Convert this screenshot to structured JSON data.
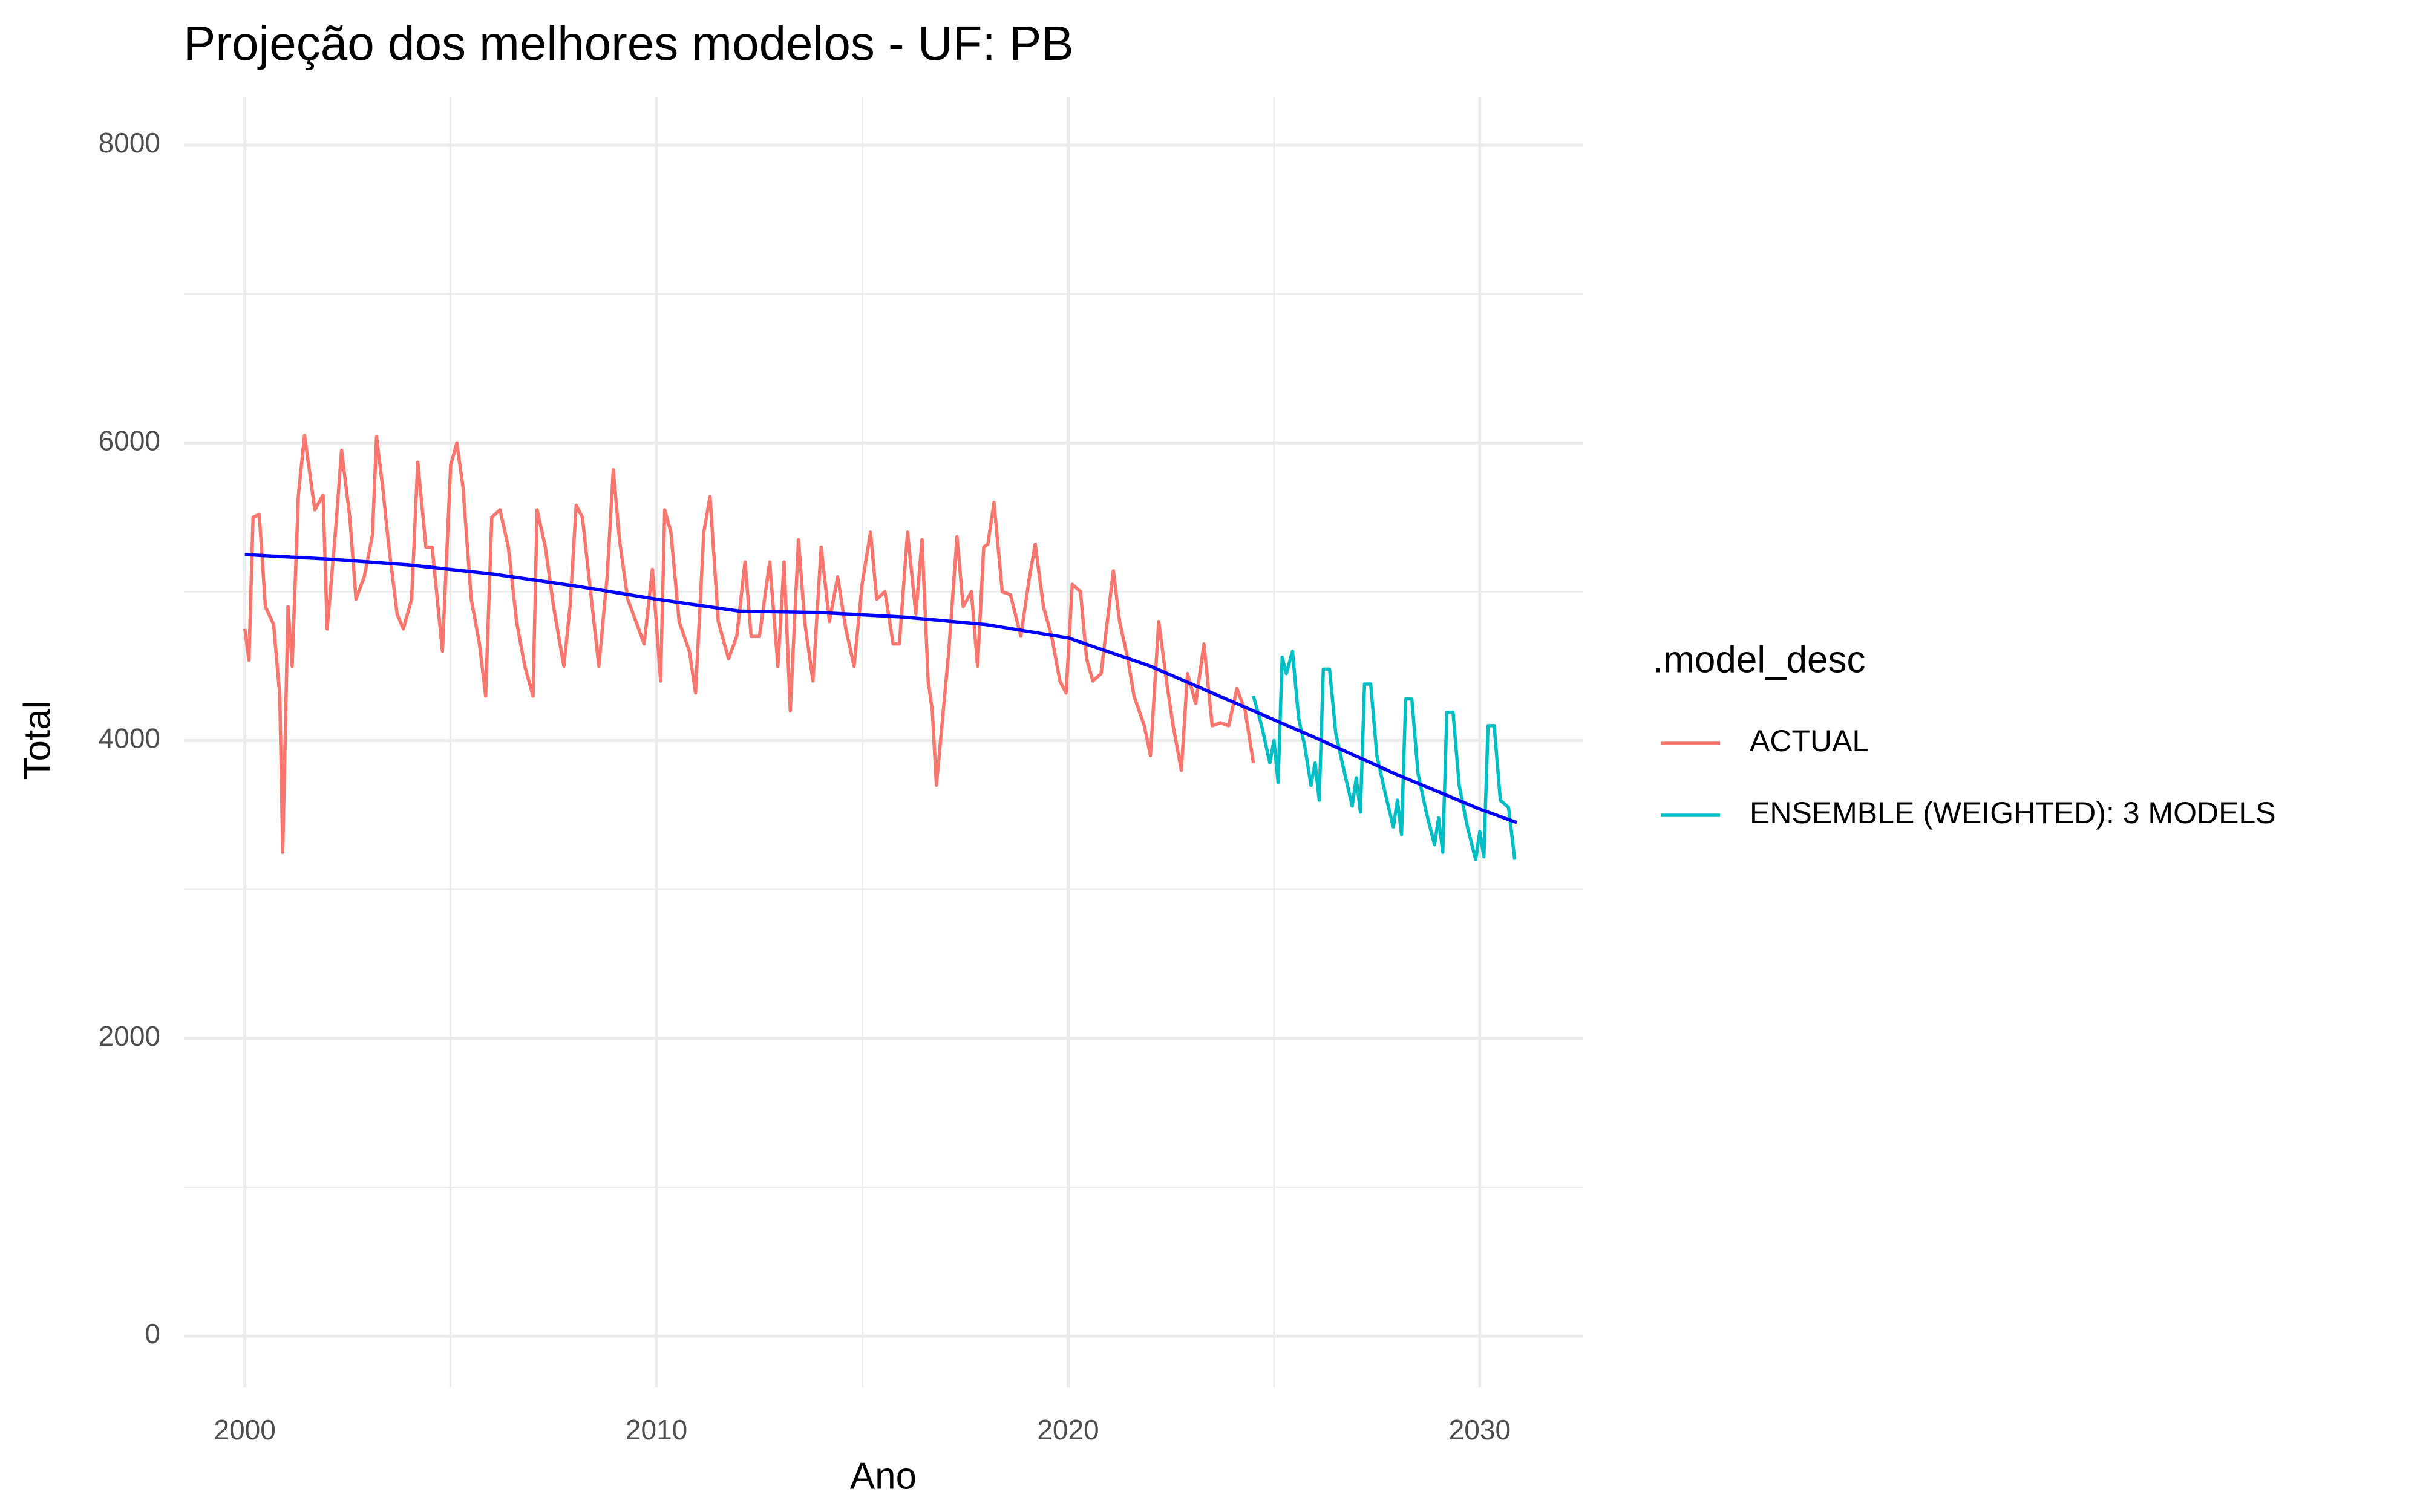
{
  "chart_data": {
    "type": "line",
    "title": "Projeção dos melhores modelos - UF: PB",
    "x_label": "Ano",
    "y_label": "Total",
    "legend_title": ".model_desc",
    "xlim": [
      1998.52,
      2032.5
    ],
    "ylim": [
      -345,
      8325
    ],
    "xticks": [
      2000,
      2010,
      2020,
      2030
    ],
    "xticks_minor": [
      2005,
      2015,
      2025
    ],
    "yticks": [
      0,
      2000,
      4000,
      6000,
      8000
    ],
    "yticks_minor": [
      1000,
      3000,
      5000,
      7000
    ],
    "grid": true,
    "legend": "right",
    "series": [
      {
        "name": "ACTUAL",
        "color": "#F8766D",
        "x": [
          2000.0,
          2000.1,
          2000.2,
          2000.35,
          2000.5,
          2000.7,
          2000.85,
          2000.92,
          2001.05,
          2001.15,
          2001.3,
          2001.45,
          2001.7,
          2001.9,
          2002.0,
          2002.2,
          2002.35,
          2002.55,
          2002.7,
          2002.9,
          2003.1,
          2003.2,
          2003.35,
          2003.5,
          2003.7,
          2003.85,
          2004.05,
          2004.2,
          2004.4,
          2004.55,
          2004.8,
          2005.0,
          2005.15,
          2005.3,
          2005.5,
          2005.7,
          2005.85,
          2006.0,
          2006.2,
          2006.4,
          2006.6,
          2006.8,
          2007.0,
          2007.1,
          2007.3,
          2007.5,
          2007.75,
          2007.9,
          2008.05,
          2008.2,
          2008.4,
          2008.6,
          2008.8,
          2008.95,
          2009.1,
          2009.3,
          2009.5,
          2009.7,
          2009.9,
          2010.1,
          2010.2,
          2010.35,
          2010.55,
          2010.8,
          2010.95,
          2011.15,
          2011.3,
          2011.5,
          2011.75,
          2011.95,
          2012.15,
          2012.3,
          2012.5,
          2012.75,
          2012.95,
          2013.1,
          2013.25,
          2013.45,
          2013.6,
          2013.8,
          2014.0,
          2014.2,
          2014.4,
          2014.6,
          2014.8,
          2015.0,
          2015.2,
          2015.35,
          2015.55,
          2015.75,
          2015.9,
          2016.1,
          2016.3,
          2016.45,
          2016.6,
          2016.7,
          2016.8,
          2016.95,
          2017.1,
          2017.3,
          2017.45,
          2017.65,
          2017.8,
          2017.95,
          2018.05,
          2018.2,
          2018.4,
          2018.6,
          2018.85,
          2019.05,
          2019.2,
          2019.4,
          2019.6,
          2019.8,
          2019.95,
          2020.1,
          2020.3,
          2020.45,
          2020.6,
          2020.8,
          2021.1,
          2021.25,
          2021.45,
          2021.6,
          2021.85,
          2022.0,
          2022.2,
          2022.4,
          2022.55,
          2022.75,
          2022.9,
          2023.1,
          2023.3,
          2023.5,
          2023.7,
          2023.9,
          2024.1,
          2024.3,
          2024.5
        ],
        "values": [
          4750,
          4540,
          5500,
          5520,
          4900,
          4780,
          4300,
          3250,
          4900,
          4500,
          5650,
          6050,
          5550,
          5650,
          4750,
          5400,
          5950,
          5500,
          4950,
          5100,
          5380,
          6040,
          5700,
          5300,
          4850,
          4750,
          4950,
          5870,
          5300,
          5300,
          4600,
          5850,
          6000,
          5700,
          4950,
          4650,
          4300,
          5500,
          5550,
          5300,
          4800,
          4500,
          4300,
          5550,
          5300,
          4900,
          4500,
          4900,
          5580,
          5500,
          5000,
          4500,
          5100,
          5820,
          5350,
          4950,
          4800,
          4650,
          5150,
          4400,
          5550,
          5400,
          4800,
          4600,
          4320,
          5400,
          5640,
          4800,
          4550,
          4700,
          5200,
          4700,
          4700,
          5200,
          4500,
          5200,
          4200,
          5350,
          4800,
          4400,
          5300,
          4800,
          5100,
          4750,
          4500,
          5060,
          5400,
          4950,
          5000,
          4650,
          4650,
          5400,
          4850,
          5350,
          4400,
          4200,
          3700,
          4150,
          4600,
          5370,
          4900,
          5000,
          4500,
          5300,
          5320,
          5600,
          5000,
          4980,
          4700,
          5080,
          5320,
          4900,
          4700,
          4400,
          4320,
          5050,
          5000,
          4550,
          4400,
          4450,
          5140,
          4800,
          4550,
          4300,
          4100,
          3900,
          4800,
          4380,
          4100,
          3800,
          4450,
          4250,
          4650,
          4100,
          4120,
          4100,
          4350,
          4200,
          3850
        ]
      },
      {
        "name": "ENSEMBLE (WEIGHTED): 3 MODELS",
        "color": "#00BFC4",
        "x": [
          2024.5,
          2024.7,
          2024.9,
          2025.0,
          2025.1,
          2025.2,
          2025.3,
          2025.45,
          2025.6,
          2025.75,
          2025.9,
          2026.0,
          2026.1,
          2026.2,
          2026.35,
          2026.5,
          2026.7,
          2026.9,
          2027.0,
          2027.1,
          2027.2,
          2027.35,
          2027.5,
          2027.7,
          2027.9,
          2028.0,
          2028.1,
          2028.2,
          2028.35,
          2028.5,
          2028.7,
          2028.9,
          2029.0,
          2029.1,
          2029.2,
          2029.35,
          2029.5,
          2029.7,
          2029.9,
          2030.0,
          2030.1,
          2030.2,
          2030.35,
          2030.5,
          2030.7,
          2030.85
        ],
        "values": [
          4300,
          4100,
          3850,
          4000,
          3720,
          4560,
          4450,
          4600,
          4150,
          3960,
          3700,
          3850,
          3600,
          4480,
          4480,
          4050,
          3800,
          3560,
          3750,
          3520,
          4380,
          4380,
          3900,
          3650,
          3420,
          3600,
          3370,
          4280,
          4280,
          3780,
          3520,
          3300,
          3480,
          3250,
          4190,
          4190,
          3700,
          3420,
          3200,
          3390,
          3220,
          4100,
          4100,
          3600,
          3550,
          3200
        ]
      }
    ],
    "trend": {
      "color": "#0000FF",
      "x": [
        2000,
        2002,
        2004,
        2006,
        2008,
        2010,
        2012,
        2014,
        2016,
        2018,
        2020,
        2022,
        2024,
        2026,
        2028,
        2030,
        2030.9
      ],
      "values": [
        5250,
        5220,
        5180,
        5120,
        5040,
        4950,
        4870,
        4860,
        4830,
        4780,
        4690,
        4500,
        4260,
        4020,
        3770,
        3540,
        3450
      ]
    }
  }
}
